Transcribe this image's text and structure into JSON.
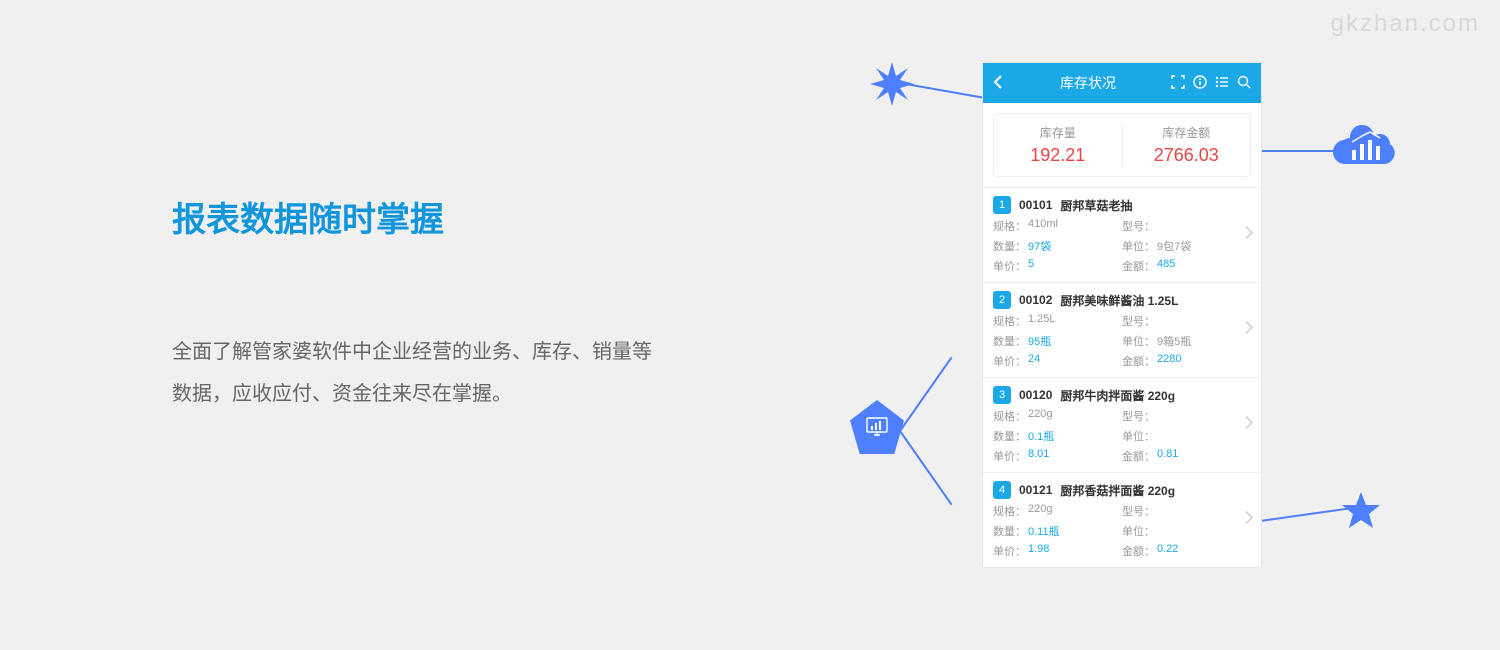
{
  "watermark": "gkzhan.com",
  "heading": "报表数据随时掌握",
  "description": "全面了解管家婆软件中企业经营的业务、库存、销量等数据，应收应付、资金往来尽在掌握。",
  "colors": {
    "accent_blue": "#1296db",
    "app_blue": "#1aa9e6",
    "shape_blue": "#4d7fff",
    "value_red": "#e54545",
    "text_gray": "#666",
    "label_gray": "#999",
    "bg": "#f0f0f0"
  },
  "app": {
    "header": {
      "title": "库存状况"
    },
    "summary": [
      {
        "label": "库存量",
        "value": "192.21"
      },
      {
        "label": "库存金额",
        "value": "2766.03"
      }
    ],
    "field_labels": {
      "spec": "规格：",
      "model": "型号：",
      "qty": "数量：",
      "unit": "单位：",
      "price": "单价：",
      "amount": "金额："
    },
    "items": [
      {
        "idx": "1",
        "code": "00101",
        "name": "厨邦草菇老抽",
        "spec": "410ml",
        "model": "",
        "qty": "97袋",
        "unit": "9包7袋",
        "price": "5",
        "amount": "485"
      },
      {
        "idx": "2",
        "code": "00102",
        "name": "厨邦美味鲜酱油 1.25L",
        "spec": "1.25L",
        "model": "",
        "qty": "95瓶",
        "unit": "9箱5瓶",
        "price": "24",
        "amount": "2280"
      },
      {
        "idx": "3",
        "code": "00120",
        "name": "厨邦牛肉拌面酱 220g",
        "spec": "220g",
        "model": "",
        "qty": "0.1瓶",
        "unit": "",
        "price": "8.01",
        "amount": "0.81"
      },
      {
        "idx": "4",
        "code": "00121",
        "name": "厨邦香菇拌面酱 220g",
        "spec": "220g",
        "model": "",
        "qty": "0.11瓶",
        "unit": "",
        "price": "1.98",
        "amount": "0.22"
      }
    ]
  }
}
